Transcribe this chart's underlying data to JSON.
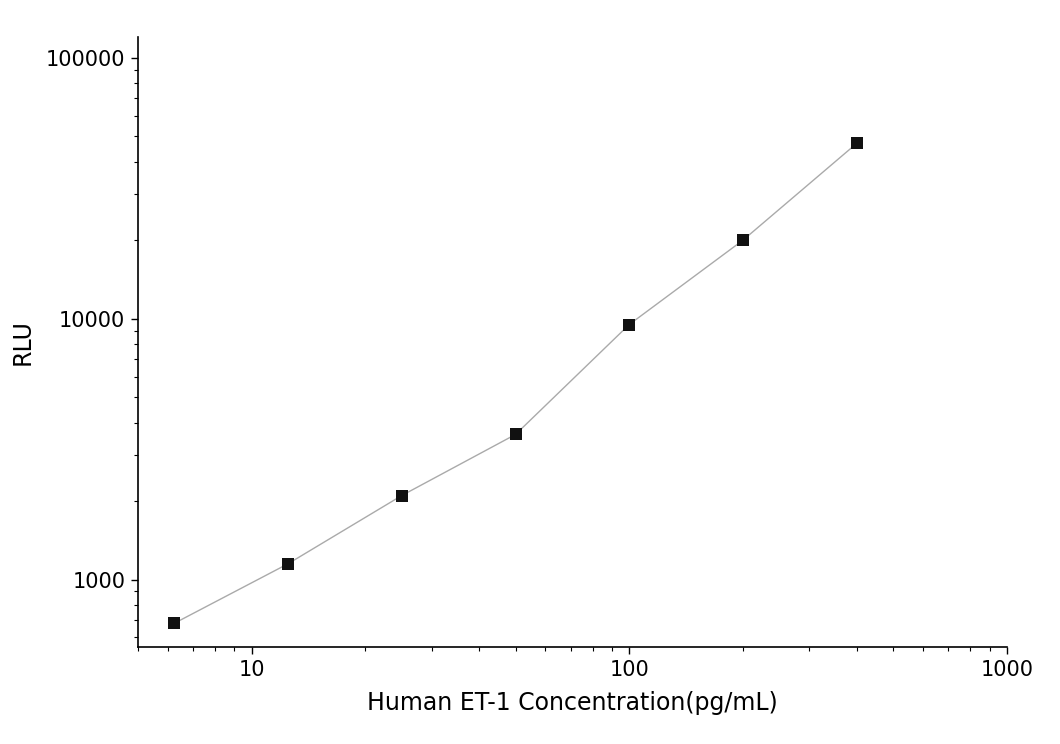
{
  "x": [
    6.25,
    12.5,
    25,
    50,
    100,
    200,
    400
  ],
  "y": [
    680,
    1150,
    2100,
    3600,
    9500,
    20000,
    47000
  ],
  "xlabel": "Human ET-1 Concentration(pg/mL)",
  "ylabel": "RLU",
  "xlim": [
    5,
    1000
  ],
  "ylim": [
    550,
    120000
  ],
  "xticks": [
    10,
    100,
    1000
  ],
  "yticks": [
    1000,
    10000,
    100000
  ],
  "line_color": "#aaaaaa",
  "marker_color": "#111111",
  "marker_size": 8,
  "line_width": 1.0,
  "xlabel_fontsize": 17,
  "ylabel_fontsize": 17,
  "tick_fontsize": 15,
  "background_color": "#ffffff"
}
